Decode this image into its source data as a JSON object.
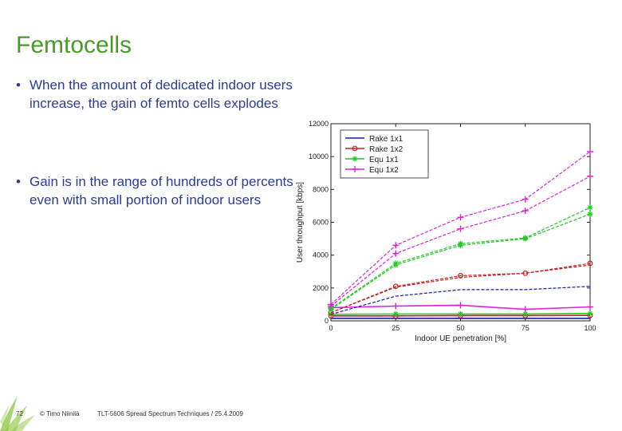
{
  "slide": {
    "title": "Femtocells",
    "bullets": [
      "When the amount of dedicated indoor users increase, the gain of femto cells explodes",
      "Gain is in the range of hundreds of percents even with small portion of indoor users"
    ],
    "bullet_symbol": "•"
  },
  "footer": {
    "page_number": "72",
    "copyright": "© Timo Niinilä",
    "course": "TLT-5606 Spread Spectrum Techniques / 25.4.2009",
    "accent_color": "#8cc63f"
  },
  "chart_data": {
    "type": "line",
    "xlabel": "Indoor UE penetration [%]",
    "ylabel": "User throughput [kbps]",
    "x_ticks": [
      0,
      25,
      50,
      75,
      100
    ],
    "y_ticks": [
      0,
      2000,
      4000,
      6000,
      8000,
      10000,
      12000
    ],
    "xlim": [
      0,
      100
    ],
    "ylim": [
      0,
      12000
    ],
    "grid": false,
    "legend_position": "top-right",
    "series": [
      {
        "name": "Rake 1x1",
        "color": "#1a1aa8",
        "marker": "none",
        "x": [
          0,
          25,
          50,
          75,
          100
        ],
        "values": [
          150,
          150,
          150,
          150,
          150
        ]
      },
      {
        "name": "Rake 1x2",
        "color": "#c82020",
        "marker": "circle",
        "x": [
          0,
          25,
          50,
          75,
          100
        ],
        "values": [
          300,
          300,
          320,
          320,
          330
        ]
      },
      {
        "name": "Equ 1x1",
        "color": "#22cc22",
        "marker": "star",
        "x": [
          0,
          25,
          50,
          75,
          100
        ],
        "values": [
          400,
          420,
          420,
          420,
          450
        ]
      },
      {
        "name": "Equ 1x2",
        "color": "#dd22dd",
        "marker": "plus",
        "x": [
          0,
          25,
          50,
          75,
          100
        ],
        "values": [
          800,
          900,
          950,
          700,
          850
        ]
      },
      {
        "name": "",
        "color": "#1a1aa8",
        "marker": "none",
        "dashed": true,
        "x": [
          0,
          25,
          50,
          75,
          100
        ],
        "values": [
          400,
          1500,
          1900,
          1900,
          2100
        ]
      },
      {
        "name": "",
        "color": "#c82020",
        "marker": "circle",
        "dashed": true,
        "x": [
          0,
          25,
          50,
          75,
          100
        ],
        "values": [
          500,
          2100,
          2750,
          2900,
          3500
        ]
      },
      {
        "name": "",
        "color": "#c82020",
        "marker": "none",
        "dashed": true,
        "x": [
          0,
          25,
          50,
          75,
          100
        ],
        "values": [
          500,
          2050,
          2650,
          2900,
          3400
        ]
      },
      {
        "name": "",
        "color": "#22cc22",
        "marker": "star",
        "dashed": true,
        "x": [
          0,
          25,
          50,
          75,
          100
        ],
        "values": [
          700,
          3400,
          4600,
          5000,
          6500
        ]
      },
      {
        "name": "",
        "color": "#22cc22",
        "marker": "star",
        "dashed": true,
        "x": [
          0,
          25,
          50,
          75,
          100
        ],
        "values": [
          750,
          3500,
          4700,
          5050,
          6900
        ]
      },
      {
        "name": "",
        "color": "#dd22dd",
        "marker": "plus",
        "dashed": true,
        "x": [
          0,
          25,
          50,
          75,
          100
        ],
        "values": [
          900,
          4100,
          5600,
          6700,
          8800
        ]
      },
      {
        "name": "",
        "color": "#dd22dd",
        "marker": "plus",
        "dashed": true,
        "x": [
          0,
          25,
          50,
          75,
          100
        ],
        "values": [
          1000,
          4600,
          6300,
          7400,
          10300
        ]
      }
    ]
  }
}
